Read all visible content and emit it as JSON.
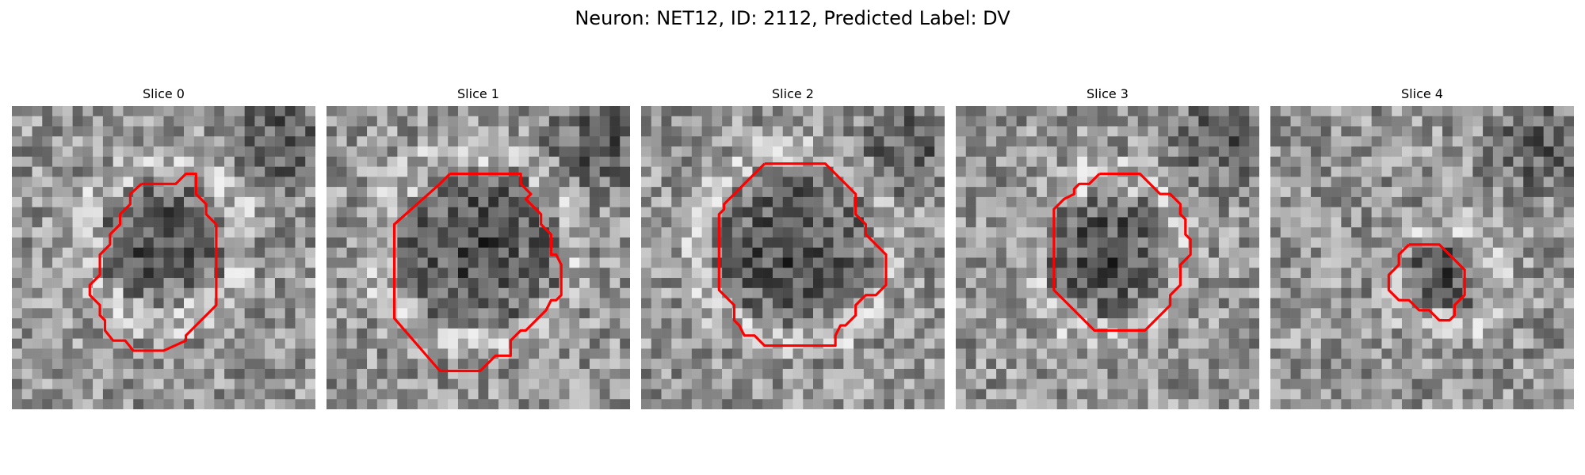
{
  "figure": {
    "title": "Neuron: NET12, ID: 2112, Predicted Label: DV"
  },
  "contour_color": "#ff0000",
  "colormap": "grayscale",
  "slices": [
    {
      "title": "Slice 0"
    },
    {
      "title": "Slice 1"
    },
    {
      "title": "Slice 2"
    },
    {
      "title": "Slice 3"
    },
    {
      "title": "Slice 4"
    }
  ]
}
